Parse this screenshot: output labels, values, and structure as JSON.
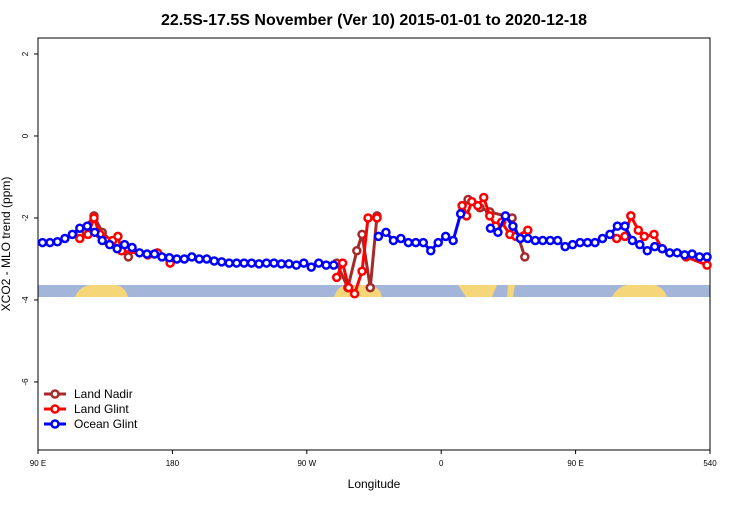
{
  "chart_data": {
    "type": "line",
    "title": "22.5S-17.5S November (Ver 10)   2015-01-01 to 2020-12-18",
    "x_label": "Longitude",
    "y_label": "XCO2 - MLO trend (ppm)",
    "xlim": [
      90,
      540
    ],
    "ylim": [
      -7.66,
      2.39
    ],
    "xticks": [
      {
        "value": 90,
        "label": "90 E"
      },
      180,
      {
        "value": 270,
        "label": "90 W"
      },
      {
        "value": 360,
        "label": "0"
      },
      {
        "value": 450,
        "label": "90 E"
      },
      540
    ],
    "yticks": [
      2,
      0,
      -2,
      -4,
      -6
    ],
    "legend": "bottomleft",
    "series": [
      {
        "name": "Land Nadir",
        "color": "#a52a2a",
        "x": [
          118,
          127.5,
          133,
          146,
          150.5,
          220,
          290,
          297.5,
          303.5,
          307,
          312.5,
          317,
          345,
          374,
          378,
          386,
          392.5,
          407.5,
          416,
          450,
          487
        ],
        "values": [
          -2.4,
          -1.95,
          -2.35,
          -2.8,
          -2.95,
          null,
          -3.1,
          -3.7,
          -2.8,
          -2.4,
          -3.7,
          -1.95,
          null,
          -1.85,
          -1.55,
          -1.75,
          -1.85,
          -2.0,
          -2.95,
          null,
          -1.95
        ]
      },
      {
        "name": "Land Glint",
        "color": "#ff0000",
        "x": [
          118,
          123.5,
          127.5,
          131.5,
          135.5,
          140,
          143.5,
          146,
          163.5,
          170,
          178.5,
          230,
          290,
          294,
          298,
          302,
          307,
          311,
          317,
          345,
          374,
          377,
          380.5,
          384.5,
          388.5,
          392.5,
          396.5,
          400.5,
          406,
          410,
          418,
          450,
          477.5,
          483,
          487,
          492,
          496,
          502.5,
          508,
          524,
          538
        ],
        "values": [
          -2.5,
          -2.4,
          -2.0,
          -2.4,
          -2.55,
          -2.55,
          -2.45,
          -2.8,
          -2.9,
          -2.85,
          -3.1,
          null,
          -3.45,
          -3.1,
          -3.7,
          -3.85,
          -3.3,
          -2.0,
          -2.0,
          null,
          -1.7,
          -1.95,
          -1.6,
          -1.7,
          -1.5,
          -1.95,
          -2.2,
          -2.1,
          -2.4,
          -2.45,
          -2.3,
          null,
          -2.5,
          -2.45,
          -1.95,
          -2.3,
          -2.45,
          -2.4,
          -2.75,
          -2.95,
          -3.15
        ]
      },
      {
        "name": "Ocean Glint",
        "color": "#0000ff",
        "x": [
          93,
          98,
          103,
          108,
          113,
          118,
          123,
          128,
          133,
          138,
          143,
          148,
          153,
          158,
          163,
          168,
          173,
          178,
          183,
          188,
          193,
          198,
          203,
          208,
          213,
          218,
          223,
          228,
          233,
          238,
          243,
          248,
          253,
          258,
          263,
          268,
          273,
          278,
          283,
          288,
          303,
          318,
          323,
          328,
          333,
          338,
          343,
          348,
          353,
          358,
          363,
          368,
          373,
          383,
          393,
          398,
          403,
          408,
          413,
          418,
          423,
          428,
          433,
          438,
          443,
          448,
          453,
          458,
          463,
          468,
          473,
          478,
          483,
          488,
          493,
          498,
          503,
          508,
          513,
          518,
          523,
          528,
          533,
          538
        ],
        "values": [
          -2.6,
          -2.6,
          -2.58,
          -2.5,
          -2.4,
          -2.25,
          -2.2,
          -2.35,
          -2.55,
          -2.65,
          -2.75,
          -2.65,
          -2.72,
          -2.85,
          -2.88,
          -2.88,
          -2.95,
          -2.97,
          -3.0,
          -3.0,
          -2.95,
          -3.0,
          -3.0,
          -3.05,
          -3.07,
          -3.1,
          -3.1,
          -3.1,
          -3.1,
          -3.12,
          -3.1,
          -3.1,
          -3.12,
          -3.12,
          -3.15,
          -3.1,
          -3.2,
          -3.1,
          -3.15,
          -3.15,
          null,
          -2.45,
          -2.35,
          -2.55,
          -2.5,
          -2.6,
          -2.6,
          -2.6,
          -2.8,
          -2.6,
          -2.45,
          -2.55,
          -1.9,
          null,
          -2.25,
          -2.35,
          -1.95,
          -2.2,
          -2.5,
          -2.5,
          -2.55,
          -2.55,
          -2.55,
          -2.55,
          -2.7,
          -2.65,
          -2.6,
          -2.6,
          -2.6,
          -2.5,
          -2.4,
          -2.2,
          -2.2,
          -2.55,
          -2.65,
          -2.8,
          -2.7,
          -2.75,
          -2.85,
          -2.85,
          -2.9,
          -2.88,
          -2.95,
          -2.95
        ]
      }
    ]
  }
}
